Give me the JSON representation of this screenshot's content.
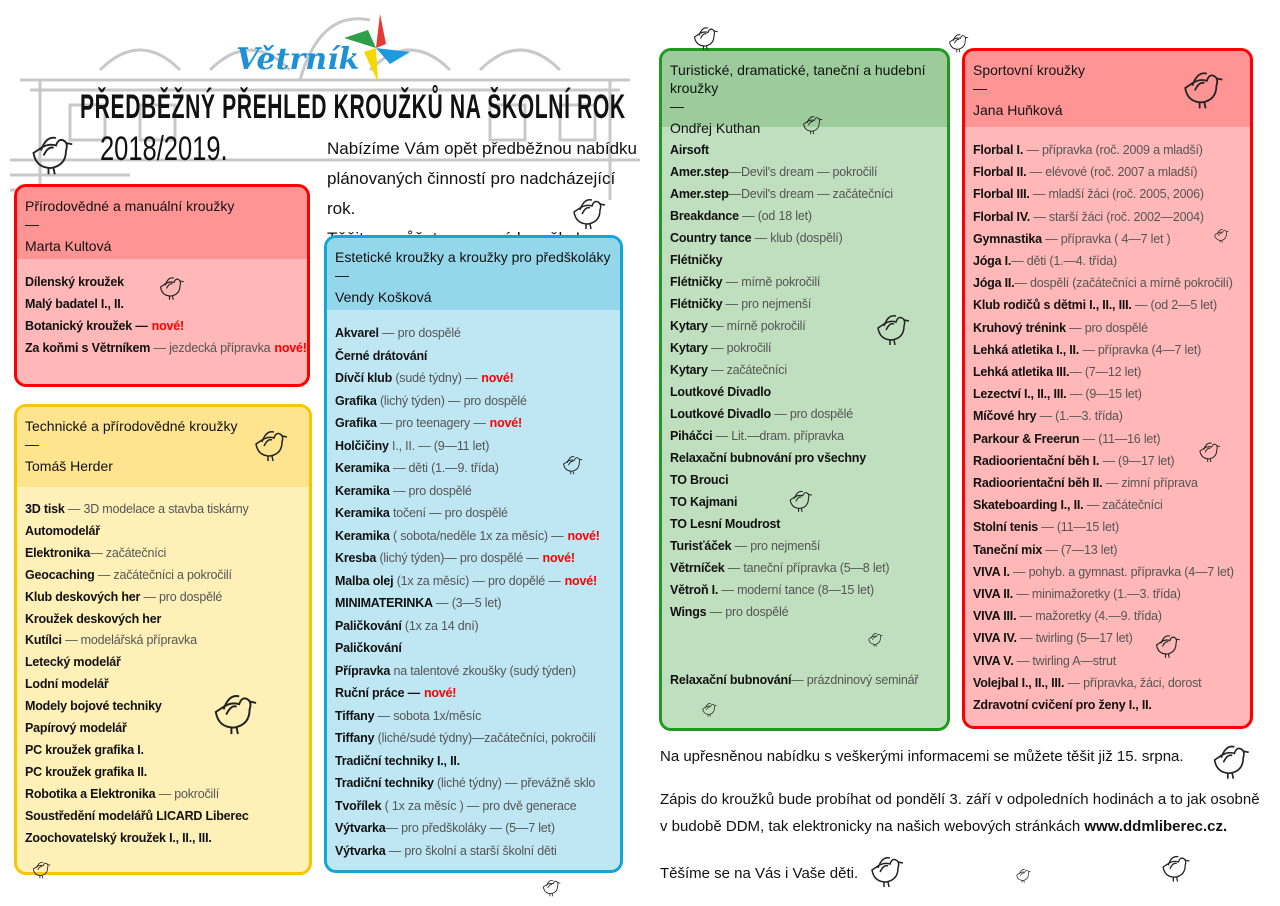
{
  "header": {
    "logo_text": "Větrník",
    "title": "PŘEDBĚŽNÝ PŘEHLED KROUŽKŮ NA ŠKOLNÍ ROK",
    "year": "2018/2019.",
    "intro": [
      "Nabízíme Vám opět předběžnou nabídku",
      "plánovaných činností pro nadcházející rok.",
      "Těšit se můžete na nové kroužky!"
    ],
    "pinwheel_colors": [
      "#e53935",
      "#1e9be0",
      "#f5d800",
      "#2e9e4a"
    ]
  },
  "new_label": "nové!",
  "dash": "—",
  "boxes": [
    {
      "title": "Přírodovědné a manuální kroužky",
      "leader": "Marta Kultová",
      "items": [
        {
          "name": "Dílenský kroužek"
        },
        {
          "name": "Malý badatel I., II."
        },
        {
          "name": "Botanický kroužek —",
          "new": true
        },
        {
          "name": "Za koňmi s Větrníkem",
          "desc": " — jezdecká přípravka",
          "new": true
        }
      ]
    },
    {
      "title": "Technické a přírodovědné kroužky",
      "leader": "Tomáš Herder",
      "items": [
        {
          "name": "3D tisk",
          "desc": " — 3D modelace a stavba tiskárny"
        },
        {
          "name": "Automodelář"
        },
        {
          "name": "Elektronika",
          "desc": "— začátečníci"
        },
        {
          "name": "Geocaching",
          "desc": " — začátečníci a pokročilí"
        },
        {
          "name": "Klub deskových her",
          "desc": " — pro dospělé"
        },
        {
          "name": "Kroužek deskových her"
        },
        {
          "name": "Kutílci",
          "desc": " — modelářská přípravka"
        },
        {
          "name": "Letecký modelář"
        },
        {
          "name": "Lodní modelář"
        },
        {
          "name": "Modely bojové techniky"
        },
        {
          "name": "Papírový modelář"
        },
        {
          "name": "PC kroužek grafika I."
        },
        {
          "name": "PC kroužek grafika II."
        },
        {
          "name": "Robotika a Elektronika",
          "desc": " — pokročilí"
        },
        {
          "name": "Soustředění modelářů LICARD Liberec"
        },
        {
          "name": "Zoochovatelský kroužek I., II., III."
        }
      ]
    },
    {
      "title": "Estetické kroužky a kroužky pro předškoláky",
      "leader": "Vendy Košková",
      "items": [
        {
          "name": "Akvarel",
          "desc": " — pro dospělé"
        },
        {
          "name": "Černé drátování"
        },
        {
          "name": "Dívčí klub",
          "desc": " (sudé týdny) —",
          "new": true
        },
        {
          "name": "Grafika",
          "desc": " (lichý týden) — pro dospělé"
        },
        {
          "name": "Grafika",
          "desc": " — pro teenagery —",
          "new": true
        },
        {
          "name": "Holčičiny",
          "desc": " I., II. — (9—11 let)"
        },
        {
          "name": "Keramika",
          "desc": " — děti (1.—9. třída)"
        },
        {
          "name": "Keramika",
          "desc": " — pro dospělé"
        },
        {
          "name": "Keramika",
          "desc": " točení — pro dospělé"
        },
        {
          "name": "Keramika",
          "desc": " ( sobota/neděle 1x za měsíc) —",
          "new": true
        },
        {
          "name": "Kresba",
          "desc": " (lichý týden)— pro dospělé —",
          "new": true
        },
        {
          "name": "Malba olej",
          "desc": " (1x za měsíc) — pro dopělé —",
          "new": true
        },
        {
          "name": "MINIMATERINKA",
          "desc": " — (3—5 let)"
        },
        {
          "name": "Paličkování",
          "desc": " (1x za 14 dní)"
        },
        {
          "name": "Paličkování"
        },
        {
          "name": "Přípravka",
          "desc": " na talentové zkoušky (sudý týden)"
        },
        {
          "name": "Ruční práce —",
          "new": true
        },
        {
          "name": "Tiffany",
          "desc": "  — sobota 1x/měsíc"
        },
        {
          "name": "Tiffany",
          "desc": "  (liché/sudé týdny)—začátečníci, pokročilí"
        },
        {
          "name": "Tradiční techniky I., II."
        },
        {
          "name": "Tradiční techniky",
          "desc": " (liché týdny) — převážně sklo"
        },
        {
          "name": "Tvořílek",
          "desc": " ( 1x za měsíc ) — pro dvě generace"
        },
        {
          "name": "Výtvarka",
          "desc": "— pro předškoláky — (5—7 let)"
        },
        {
          "name": "Výtvarka",
          "desc": " — pro školní a starší školní děti"
        }
      ]
    },
    {
      "title": "Turistické, dramatické, taneční a hudební kroužky",
      "leader": "Ondřej Kuthan",
      "items": [
        {
          "name": "Airsoft"
        },
        {
          "name": "Amer.step",
          "desc": "—Devil's dream — pokročilí"
        },
        {
          "name": "Amer.step",
          "desc": "—Devil's dream — začátečníci"
        },
        {
          "name": "Breakdance",
          "desc": " — (od 18 let)"
        },
        {
          "name": "Country tance",
          "desc": " — klub (dospělí)"
        },
        {
          "name": "Flétničky"
        },
        {
          "name": "Flétničky",
          "desc": " — mírně pokročilí"
        },
        {
          "name": "Flétničky",
          "desc": " — pro nejmenší"
        },
        {
          "name": "Kytary",
          "desc": " — mírně pokročilí"
        },
        {
          "name": "Kytary",
          "desc": " — pokročilí"
        },
        {
          "name": "Kytary",
          "desc": " — začátečníci"
        },
        {
          "name": "Loutkové Divadlo"
        },
        {
          "name": "Loutkové Divadlo",
          "desc": " — pro dospělé"
        },
        {
          "name": "Piháčci",
          "desc": " — Lit.—dram. přípravka"
        },
        {
          "name": "Relaxační bubnování pro všechny"
        },
        {
          "name": "TO Brouci"
        },
        {
          "name": "TO Kajmani"
        },
        {
          "name": "TO Lesní Moudrost"
        },
        {
          "name": "Turisťáček",
          "desc": " — pro nejmenší"
        },
        {
          "name": "Větrníček",
          "desc": " — taneční přípravka (5—8 let)"
        },
        {
          "name": "Větroň I.",
          "desc": " — moderní tance (8—15 let)"
        },
        {
          "name": "Wings",
          "desc": " — pro dospělé"
        }
      ],
      "extra": {
        "name": "Relaxační bubnování",
        "desc": "— prázdninový seminář"
      }
    },
    {
      "title": "Sportovní kroužky",
      "leader": "Jana Huňková",
      "items": [
        {
          "name": "Florbal I.",
          "desc": " — přípravka (roč. 2009 a mladší)"
        },
        {
          "name": "Florbal II.",
          "desc": " — elévové (roč. 2007 a mladší)"
        },
        {
          "name": "Florbal III.",
          "desc": " — mladší žáci (roč. 2005, 2006)"
        },
        {
          "name": "Florbal IV.",
          "desc": " — starší žáci (roč. 2002—2004)"
        },
        {
          "name": "Gymnastika",
          "desc": " — přípravka ( 4—7 let )"
        },
        {
          "name": "Jóga I.",
          "desc": "— děti (1.—4. třída)"
        },
        {
          "name": "Jóga II.",
          "desc": "— dospělí (začátečníci a mírně pokročilí)"
        },
        {
          "name": "Klub rodičů s dětmi I., II., III.",
          "desc": " — (od 2—5 let)"
        },
        {
          "name": "Kruhový trénink",
          "desc": " — pro dospělé"
        },
        {
          "name": "Lehká atletika I., II.",
          "desc": " — přípravka (4—7 let)"
        },
        {
          "name": "Lehká atletika  III.",
          "desc": "— (7—12 let)"
        },
        {
          "name": "Lezectví I., II., III.",
          "desc": " — (9—15 let)"
        },
        {
          "name": "Míčové hry",
          "desc": " — (1.—3. třída)"
        },
        {
          "name": "Parkour & Freerun",
          "desc": " — (11—16 let)"
        },
        {
          "name": "Radioorientační běh I.",
          "desc": " — (9—17 let)"
        },
        {
          "name": "Radioorientační běh II.",
          "desc": " — zimní příprava"
        },
        {
          "name": "Skateboarding I., II.",
          "desc": " — začátečníci"
        },
        {
          "name": "Stolní tenis",
          "desc": " — (11—15 let)"
        },
        {
          "name": "Taneční mix",
          "desc": " — (7—13 let)"
        },
        {
          "name": "VIVA I.",
          "desc": " — pohyb. a gymnast. přípravka (4—7 let)"
        },
        {
          "name": "VIVA II.",
          "desc": " — minimažoretky (1.—3. třída)"
        },
        {
          "name": "VIVA III.",
          "desc": " — mažoretky (4.—9. třída)"
        },
        {
          "name": "VIVA IV.",
          "desc": " — twirling (5—17 let)"
        },
        {
          "name": "VIVA V.",
          "desc": " — twirling A—strut"
        },
        {
          "name": "Volejbal I., II., III.",
          "desc": " — přípravka, žáci, dorost"
        },
        {
          "name": "Zdravotní cvičení pro ženy I., II."
        }
      ]
    }
  ],
  "footer": {
    "line1": "Na upřesněnou nabídku s veškerými informacemi se můžete těšit již 15. srpna.",
    "line2": "Zápis do kroužků bude probíhat od pondělí 3. září v odpoledních hodinách a to jak osobně",
    "line3": "v budobě DDM, tak elektronicky na našich webových stránkách ",
    "url": "www.ddmliberec.cz.",
    "line4": "Těšíme se na Vás i Vaše děti."
  }
}
